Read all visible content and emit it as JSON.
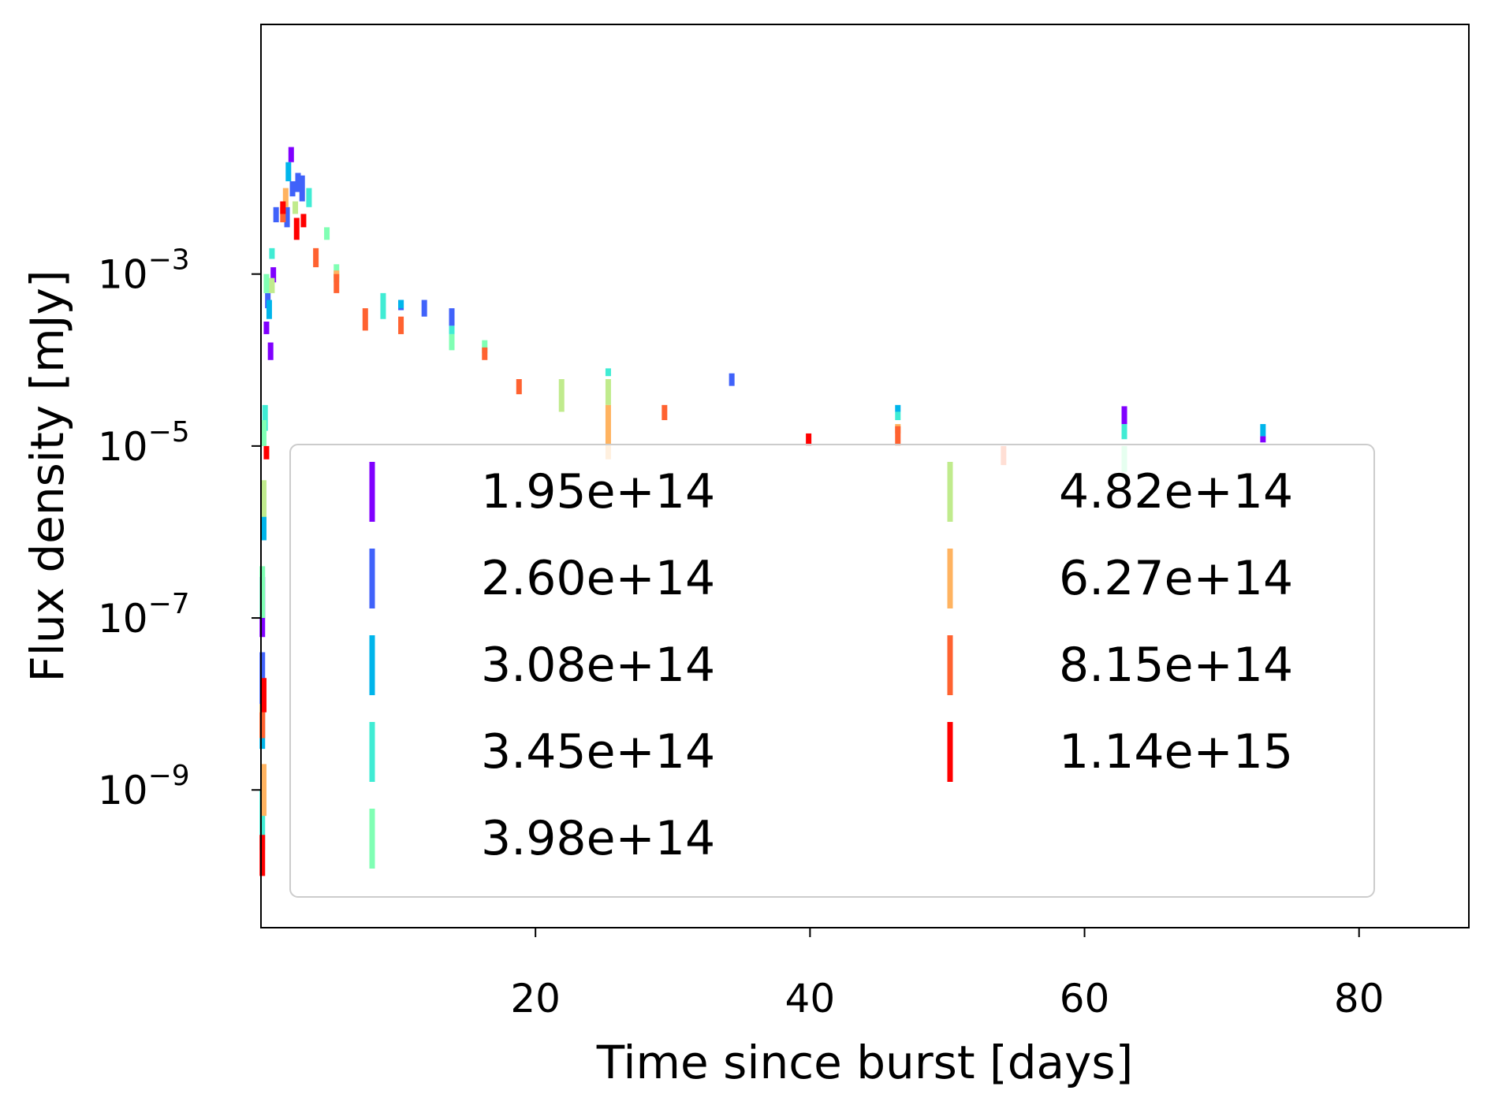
{
  "chart_data": {
    "type": "scatter",
    "marker": "errorbar",
    "xlabel": "Time since burst [days]",
    "ylabel": "Flux density [mJy]",
    "xscale": "linear",
    "yscale": "log",
    "xlim": [
      0,
      88
    ],
    "ylim": [
      2.5e-11,
      0.8
    ],
    "x_ticks": [
      {
        "value": 20,
        "label": "20"
      },
      {
        "value": 40,
        "label": "40"
      },
      {
        "value": 60,
        "label": "60"
      },
      {
        "value": 80,
        "label": "80"
      }
    ],
    "y_ticks": [
      {
        "value": 1e-09,
        "base": "10",
        "exp": "−9"
      },
      {
        "value": 1e-07,
        "base": "10",
        "exp": "−7"
      },
      {
        "value": 1e-05,
        "base": "10",
        "exp": "−5"
      },
      {
        "value": 0.001,
        "base": "10",
        "exp": "−3"
      }
    ],
    "grid": false,
    "legend": {
      "position": "lower-center",
      "columns": 2
    },
    "series": [
      {
        "name": "1.95e+14",
        "color": "#8000ff",
        "points": [
          {
            "x": 0.1,
            "ylo": 6e-08,
            "yhi": 3e-07
          },
          {
            "x": 0.4,
            "ylo": 0.0002,
            "yhi": 0.00028
          },
          {
            "x": 0.7,
            "ylo": 0.0001,
            "yhi": 0.00016
          },
          {
            "x": 0.9,
            "ylo": 0.0008,
            "yhi": 0.0012
          },
          {
            "x": 2.2,
            "ylo": 0.02,
            "yhi": 0.03
          },
          {
            "x": 62.9,
            "ylo": 1.8e-05,
            "yhi": 2.9e-05
          },
          {
            "x": 73.0,
            "ylo": 1.1e-05,
            "yhi": 1.3e-05
          }
        ]
      },
      {
        "name": "2.60e+14",
        "color": "#4062fa",
        "points": [
          {
            "x": 0.1,
            "ylo": 1e-08,
            "yhi": 4e-08
          },
          {
            "x": 0.5,
            "ylo": 0.0004,
            "yhi": 0.0006
          },
          {
            "x": 1.1,
            "ylo": 0.004,
            "yhi": 0.006
          },
          {
            "x": 1.9,
            "ylo": 0.0035,
            "yhi": 0.006
          },
          {
            "x": 2.3,
            "ylo": 0.008,
            "yhi": 0.012
          },
          {
            "x": 2.7,
            "ylo": 0.009,
            "yhi": 0.015
          },
          {
            "x": 3.0,
            "ylo": 0.007,
            "yhi": 0.014
          },
          {
            "x": 10.2,
            "ylo": 0.00038,
            "yhi": 0.0005
          },
          {
            "x": 11.9,
            "ylo": 0.00032,
            "yhi": 0.0005
          },
          {
            "x": 13.9,
            "ylo": 0.00025,
            "yhi": 0.0004
          },
          {
            "x": 34.3,
            "ylo": 5e-05,
            "yhi": 7e-05
          }
        ]
      },
      {
        "name": "3.08e+14",
        "color": "#00b5eb",
        "points": [
          {
            "x": 0.1,
            "ylo": 3e-09,
            "yhi": 1e-08
          },
          {
            "x": 0.2,
            "ylo": 8e-07,
            "yhi": 3e-06
          },
          {
            "x": 0.6,
            "ylo": 0.0003,
            "yhi": 0.0005
          },
          {
            "x": 2.0,
            "ylo": 0.012,
            "yhi": 0.02
          },
          {
            "x": 10.2,
            "ylo": 0.0004,
            "yhi": 0.0005
          },
          {
            "x": 46.4,
            "ylo": 2.5e-05,
            "yhi": 3e-05
          },
          {
            "x": 73.0,
            "ylo": 1.3e-05,
            "yhi": 1.8e-05
          }
        ]
      },
      {
        "name": "3.45e+14",
        "color": "#40ecd4",
        "points": [
          {
            "x": 0.1,
            "ylo": 2e-10,
            "yhi": 1e-09
          },
          {
            "x": 0.3,
            "ylo": 1.5e-05,
            "yhi": 3e-05
          },
          {
            "x": 0.8,
            "ylo": 0.0015,
            "yhi": 0.002
          },
          {
            "x": 3.5,
            "ylo": 0.006,
            "yhi": 0.01
          },
          {
            "x": 8.9,
            "ylo": 0.0003,
            "yhi": 0.0006
          },
          {
            "x": 13.9,
            "ylo": 0.0002,
            "yhi": 0.00025
          },
          {
            "x": 25.3,
            "ylo": 6.5e-05,
            "yhi": 8e-05
          },
          {
            "x": 46.4,
            "ylo": 2e-05,
            "yhi": 2.5e-05
          },
          {
            "x": 62.9,
            "ylo": 1.2e-05,
            "yhi": 1.8e-05
          }
        ]
      },
      {
        "name": "3.98e+14",
        "color": "#80ffb4",
        "points": [
          {
            "x": 0.1,
            "ylo": 1e-07,
            "yhi": 4e-07
          },
          {
            "x": 0.2,
            "ylo": 1e-05,
            "yhi": 2e-05
          },
          {
            "x": 0.4,
            "ylo": 0.0006,
            "yhi": 0.001
          },
          {
            "x": 4.8,
            "ylo": 0.0025,
            "yhi": 0.0035
          },
          {
            "x": 5.5,
            "ylo": 0.0008,
            "yhi": 0.0013
          },
          {
            "x": 13.9,
            "ylo": 0.00013,
            "yhi": 0.0002
          },
          {
            "x": 16.3,
            "ylo": 0.00012,
            "yhi": 0.00017
          },
          {
            "x": 62.9,
            "ylo": 5e-06,
            "yhi": 1e-05
          }
        ]
      },
      {
        "name": "4.82e+14",
        "color": "#c0eb8d",
        "points": [
          {
            "x": 0.2,
            "ylo": 1.5e-06,
            "yhi": 4e-06
          },
          {
            "x": 0.8,
            "ylo": 0.0006,
            "yhi": 0.0009
          },
          {
            "x": 2.5,
            "ylo": 0.005,
            "yhi": 0.007
          },
          {
            "x": 21.9,
            "ylo": 2.5e-05,
            "yhi": 6e-05
          },
          {
            "x": 25.3,
            "ylo": 3e-05,
            "yhi": 6e-05
          }
        ]
      },
      {
        "name": "6.27e+14",
        "color": "#ffb360",
        "points": [
          {
            "x": 0.1,
            "ylo": 4e-09,
            "yhi": 1e-08
          },
          {
            "x": 0.2,
            "ylo": 5e-10,
            "yhi": 2e-09
          },
          {
            "x": 1.8,
            "ylo": 0.006,
            "yhi": 0.01
          },
          {
            "x": 5.5,
            "ylo": 0.0009,
            "yhi": 0.0011
          },
          {
            "x": 25.3,
            "ylo": 7e-06,
            "yhi": 3e-05
          },
          {
            "x": 46.4,
            "ylo": 1.4e-05,
            "yhi": 1.8e-05
          }
        ]
      },
      {
        "name": "8.15e+14",
        "color": "#ff6230",
        "points": [
          {
            "x": 0.1,
            "ylo": 4e-09,
            "yhi": 8e-09
          },
          {
            "x": 1.6,
            "ylo": 0.004,
            "yhi": 0.006
          },
          {
            "x": 4.0,
            "ylo": 0.0012,
            "yhi": 0.002
          },
          {
            "x": 5.5,
            "ylo": 0.0006,
            "yhi": 0.001
          },
          {
            "x": 7.6,
            "ylo": 0.00022,
            "yhi": 0.0004
          },
          {
            "x": 10.2,
            "ylo": 0.0002,
            "yhi": 0.00032
          },
          {
            "x": 16.3,
            "ylo": 0.0001,
            "yhi": 0.00014
          },
          {
            "x": 18.8,
            "ylo": 4e-05,
            "yhi": 6e-05
          },
          {
            "x": 29.4,
            "ylo": 2e-05,
            "yhi": 3e-05
          },
          {
            "x": 46.4,
            "ylo": 1e-05,
            "yhi": 1.7e-05
          },
          {
            "x": 54.1,
            "ylo": 6e-06,
            "yhi": 1e-05
          }
        ]
      },
      {
        "name": "1.14e+15",
        "color": "#ff0000",
        "points": [
          {
            "x": 0.1,
            "ylo": 1e-10,
            "yhi": 3e-10
          },
          {
            "x": 0.2,
            "ylo": 8e-09,
            "yhi": 2e-08
          },
          {
            "x": 0.4,
            "ylo": 7e-06,
            "yhi": 1e-05
          },
          {
            "x": 1.6,
            "ylo": 0.005,
            "yhi": 0.007
          },
          {
            "x": 2.6,
            "ylo": 0.0025,
            "yhi": 0.0045
          },
          {
            "x": 3.1,
            "ylo": 0.0035,
            "yhi": 0.005
          },
          {
            "x": 39.9,
            "ylo": 1e-05,
            "yhi": 1.4e-05
          }
        ]
      }
    ]
  }
}
